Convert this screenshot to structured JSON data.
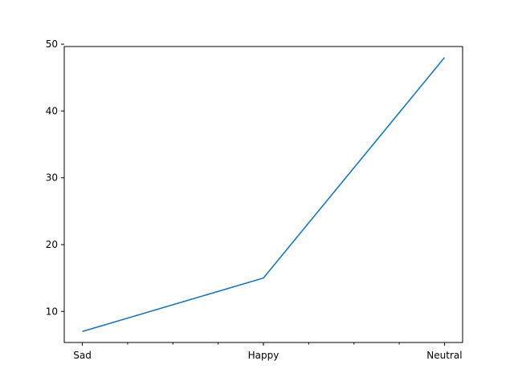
{
  "chart_data": {
    "type": "line",
    "categories": [
      "Sad",
      "Happy",
      "Neutral"
    ],
    "series": [
      {
        "values": [
          7,
          15,
          48
        ],
        "color": "#1f77b4"
      }
    ],
    "title": "",
    "xlabel": "",
    "ylabel": "",
    "ylim": [
      5.35,
      49.65
    ],
    "yticks": [
      10,
      20,
      30,
      40,
      50
    ],
    "ytick_labels": [
      "10",
      "20",
      "30",
      "40",
      "50"
    ],
    "minor_xticks": [
      0.25,
      0.5,
      0.75,
      1.25,
      1.5,
      1.75
    ],
    "grid": false,
    "legend": false
  }
}
